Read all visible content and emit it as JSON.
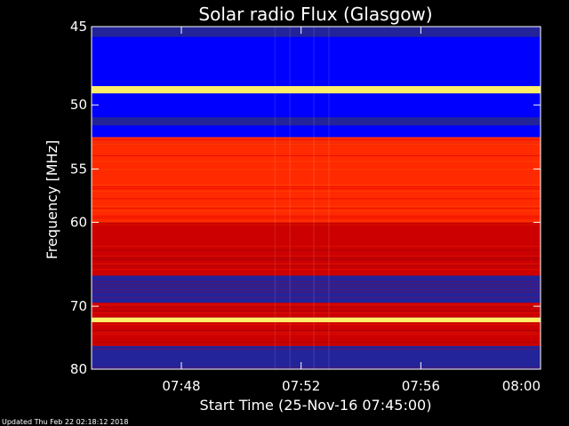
{
  "chart_data": {
    "type": "heatmap",
    "title": "Solar radio Flux (Glasgow)",
    "xlabel": "Start Time (25-Nov-16 07:45:00)",
    "ylabel": "Frequency [MHz]",
    "x_ticks": [
      {
        "minute": 3,
        "label": "07:48"
      },
      {
        "minute": 7,
        "label": "07:52"
      },
      {
        "minute": 11,
        "label": "07:56"
      },
      {
        "minute": 15,
        "label": "08:00"
      }
    ],
    "xlim_minutes": [
      0,
      15
    ],
    "y_ticks": [
      45,
      50,
      55,
      60,
      70,
      80
    ],
    "ylim": [
      45,
      80
    ],
    "y_scale": "reciprocal",
    "grid": false,
    "colormap": [
      "#23239a",
      "#0000ff",
      "#cc0000",
      "#ff2a00",
      "#ffee66"
    ],
    "bands": [
      {
        "from": 45.0,
        "to": 45.6,
        "level": "low"
      },
      {
        "from": 45.6,
        "to": 48.7,
        "level": "very-low"
      },
      {
        "from": 48.7,
        "to": 49.2,
        "level": "very-high"
      },
      {
        "from": 49.2,
        "to": 50.9,
        "level": "very-low"
      },
      {
        "from": 50.9,
        "to": 51.5,
        "level": "low"
      },
      {
        "from": 51.5,
        "to": 52.4,
        "level": "very-low"
      },
      {
        "from": 52.4,
        "to": 52.9,
        "level": "high"
      },
      {
        "from": 52.9,
        "to": 60.0,
        "level": "high"
      },
      {
        "from": 60.0,
        "to": 66.0,
        "level": "medium"
      },
      {
        "from": 66.0,
        "to": 69.5,
        "level": "low"
      },
      {
        "from": 69.5,
        "to": 71.6,
        "level": "medium"
      },
      {
        "from": 71.6,
        "to": 72.3,
        "level": "very-high"
      },
      {
        "from": 72.3,
        "to": 76.0,
        "level": "medium"
      },
      {
        "from": 76.0,
        "to": 80.0,
        "level": "low"
      }
    ]
  },
  "footer": {
    "updated": "Updated Thu Feb 22 02:18:12 2018"
  }
}
